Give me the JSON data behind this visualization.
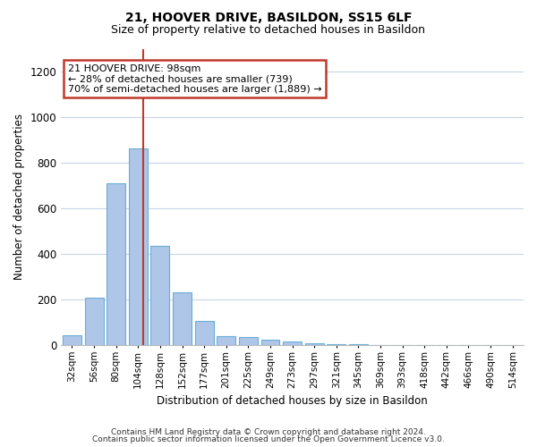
{
  "title1": "21, HOOVER DRIVE, BASILDON, SS15 6LF",
  "title2": "Size of property relative to detached houses in Basildon",
  "xlabel": "Distribution of detached houses by size in Basildon",
  "ylabel": "Number of detached properties",
  "footnote1": "Contains HM Land Registry data © Crown copyright and database right 2024.",
  "footnote2": "Contains public sector information licensed under the Open Government Licence v3.0.",
  "categories": [
    "32sqm",
    "56sqm",
    "80sqm",
    "104sqm",
    "128sqm",
    "152sqm",
    "177sqm",
    "201sqm",
    "225sqm",
    "249sqm",
    "273sqm",
    "297sqm",
    "321sqm",
    "345sqm",
    "369sqm",
    "393sqm",
    "418sqm",
    "442sqm",
    "466sqm",
    "490sqm",
    "514sqm"
  ],
  "values": [
    45,
    210,
    710,
    865,
    435,
    230,
    105,
    40,
    35,
    25,
    15,
    8,
    3,
    2,
    1,
    1,
    0,
    0,
    0,
    0,
    0
  ],
  "bar_color": "#aec6e8",
  "bar_edge_color": "#6aaed6",
  "vline_color": "#c0392b",
  "annotation_line1": "21 HOOVER DRIVE: 98sqm",
  "annotation_line2": "← 28% of detached houses are smaller (739)",
  "annotation_line3": "70% of semi-detached houses are larger (1,889) →",
  "annotation_box_facecolor": "#ffffff",
  "annotation_box_edgecolor": "#c0392b",
  "ylim": [
    0,
    1300
  ],
  "yticks": [
    0,
    200,
    400,
    600,
    800,
    1000,
    1200
  ],
  "background_color": "#ffffff",
  "grid_color": "#c8d4e8"
}
